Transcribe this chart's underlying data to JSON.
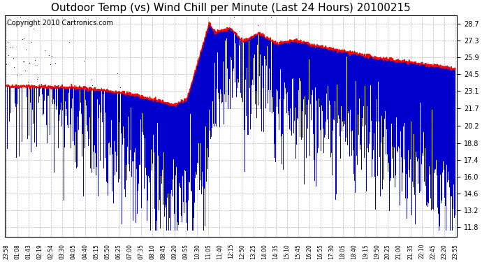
{
  "title": "Outdoor Temp (vs) Wind Chill per Minute (Last 24 Hours) 20100215",
  "copyright": "Copyright 2010 Cartronics.com",
  "yticks": [
    11.8,
    13.2,
    14.6,
    16.0,
    17.4,
    18.8,
    20.2,
    21.7,
    23.1,
    24.5,
    25.9,
    27.3,
    28.7
  ],
  "ylim": [
    11.0,
    29.4
  ],
  "xtick_labels": [
    "23:58",
    "01:08",
    "01:43",
    "02:19",
    "02:54",
    "03:30",
    "04:05",
    "04:40",
    "05:15",
    "05:50",
    "06:25",
    "07:00",
    "07:35",
    "08:10",
    "08:45",
    "09:20",
    "09:55",
    "10:30",
    "11:05",
    "11:40",
    "12:15",
    "12:50",
    "13:25",
    "14:00",
    "14:35",
    "15:10",
    "15:45",
    "16:20",
    "16:55",
    "17:30",
    "18:05",
    "18:40",
    "19:15",
    "19:50",
    "20:25",
    "21:00",
    "21:35",
    "22:10",
    "22:45",
    "23:20",
    "23:55"
  ],
  "bg_color": "#ffffff",
  "plot_bg_color": "#ffffff",
  "grid_color": "#aaaaaa",
  "bar_color": "#0000cc",
  "line_color": "#ff0000",
  "title_fontsize": 11,
  "copyright_fontsize": 7
}
